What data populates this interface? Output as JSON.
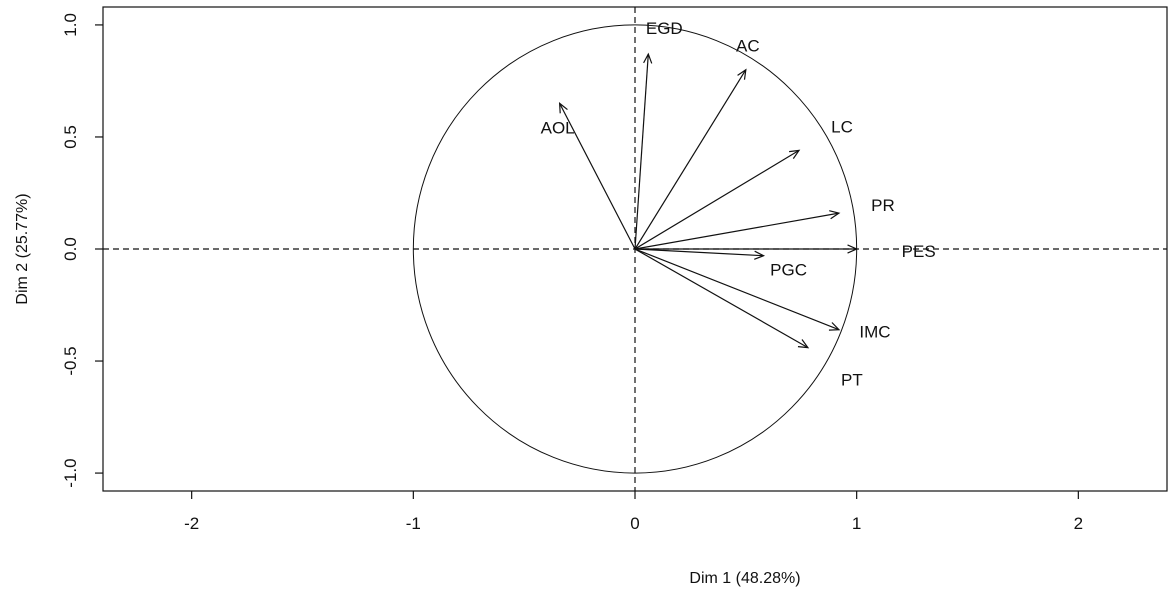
{
  "chart_data": {
    "type": "scatter",
    "title": "",
    "xlabel": "Dim 1 (48.28%)",
    "ylabel": "Dim 2 (25.77%)",
    "xlim": [
      -2.4,
      2.4
    ],
    "ylim": [
      -1.08,
      1.08
    ],
    "x_ticks": [
      "-2",
      "-1",
      "0",
      "1",
      "2"
    ],
    "y_ticks": [
      "-1.0",
      "-0.5",
      "0.0",
      "0.5",
      "1.0"
    ],
    "unit_circle": true,
    "reference_lines": "dashed lines at x = 0 and y = 0",
    "vectors": [
      {
        "label": "EGD",
        "x": 0.06,
        "y": 0.87
      },
      {
        "label": "AC",
        "x": 0.5,
        "y": 0.8
      },
      {
        "label": "LC",
        "x": 0.74,
        "y": 0.44
      },
      {
        "label": "AOL",
        "x": -0.34,
        "y": 0.65
      },
      {
        "label": "PR",
        "x": 0.92,
        "y": 0.16
      },
      {
        "label": "PES",
        "x": 1.0,
        "y": 0.0
      },
      {
        "label": "PGC",
        "x": 0.58,
        "y": -0.03
      },
      {
        "label": "IMC",
        "x": 0.92,
        "y": -0.36
      },
      {
        "label": "PT",
        "x": 0.78,
        "y": -0.44
      }
    ]
  }
}
